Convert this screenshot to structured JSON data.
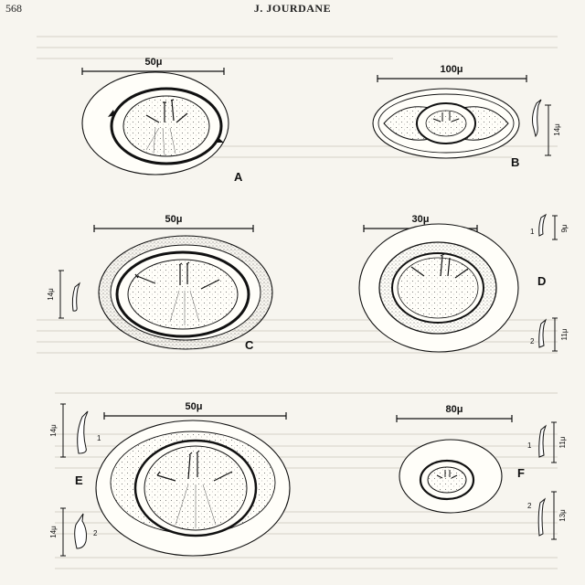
{
  "header": {
    "page_number": "568",
    "running_head": "J. JOURDANE"
  },
  "figures": {
    "A": {
      "label": "A",
      "scale": "50μ"
    },
    "B": {
      "label": "B",
      "scale": "100μ",
      "hook_size": "14μ"
    },
    "C": {
      "label": "C",
      "scale": "50μ",
      "hook_size": "14μ"
    },
    "D": {
      "label": "D",
      "scale": "30μ",
      "hook1_num": "1",
      "hook1_size": "9μ",
      "hook2_num": "2",
      "hook2_size": "11μ"
    },
    "E": {
      "label": "E",
      "scale": "50μ",
      "hook1_num": "1",
      "hook1_size": "14μ",
      "hook2_num": "2",
      "hook2_size": "14μ"
    },
    "F": {
      "label": "F",
      "scale": "80μ",
      "hook1_num": "1",
      "hook1_size": "11μ",
      "hook2_num": "2",
      "hook2_size": "13μ"
    }
  }
}
